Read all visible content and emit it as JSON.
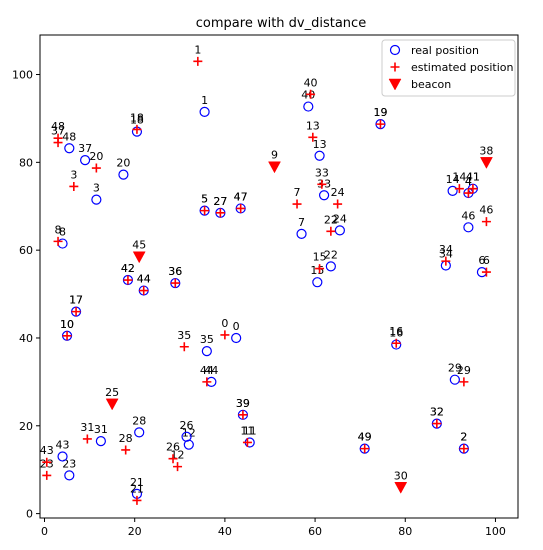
{
  "chart_data": {
    "type": "scatter",
    "title": "compare with dv_distance",
    "xlabel": "",
    "ylabel": "",
    "xlim": [
      -1,
      105
    ],
    "ylim": [
      -1,
      109
    ],
    "xticks": [
      0,
      20,
      40,
      60,
      80,
      100
    ],
    "yticks": [
      0,
      20,
      40,
      60,
      80,
      100
    ],
    "grid": false,
    "legend_position": "top-right",
    "colors": {
      "real": "#0000ff",
      "estimated": "#ff0000",
      "beacon": "#ff0000"
    },
    "series": [
      {
        "name": "real position",
        "marker": "circle",
        "points": [
          {
            "label": "0",
            "x": 42.5,
            "y": 40.0
          },
          {
            "label": "1",
            "x": 35.5,
            "y": 91.5
          },
          {
            "label": "2",
            "x": 93.0,
            "y": 14.8
          },
          {
            "label": "3",
            "x": 11.5,
            "y": 71.5
          },
          {
            "label": "4",
            "x": 94.0,
            "y": 73.0
          },
          {
            "label": "5",
            "x": 35.5,
            "y": 69.0
          },
          {
            "label": "6",
            "x": 97.0,
            "y": 55.0
          },
          {
            "label": "7",
            "x": 57.0,
            "y": 63.7
          },
          {
            "label": "8",
            "x": 4.0,
            "y": 61.5
          },
          {
            "label": "10",
            "x": 5.0,
            "y": 40.5
          },
          {
            "label": "11",
            "x": 45.5,
            "y": 16.2
          },
          {
            "label": "12",
            "x": 32.0,
            "y": 15.7
          },
          {
            "label": "13",
            "x": 61.0,
            "y": 81.5
          },
          {
            "label": "14",
            "x": 90.5,
            "y": 73.5
          },
          {
            "label": "15",
            "x": 60.5,
            "y": 52.7
          },
          {
            "label": "16",
            "x": 78.0,
            "y": 38.5
          },
          {
            "label": "17",
            "x": 7.0,
            "y": 46.0
          },
          {
            "label": "18",
            "x": 20.5,
            "y": 87.0
          },
          {
            "label": "19",
            "x": 74.5,
            "y": 88.7
          },
          {
            "label": "20",
            "x": 17.5,
            "y": 77.2
          },
          {
            "label": "21",
            "x": 20.5,
            "y": 4.5
          },
          {
            "label": "22",
            "x": 63.5,
            "y": 56.3
          },
          {
            "label": "23",
            "x": 5.5,
            "y": 8.7
          },
          {
            "label": "24",
            "x": 65.5,
            "y": 64.5
          },
          {
            "label": "26",
            "x": 31.5,
            "y": 17.5
          },
          {
            "label": "27",
            "x": 39.0,
            "y": 68.5
          },
          {
            "label": "28",
            "x": 21.0,
            "y": 18.5
          },
          {
            "label": "29",
            "x": 91.0,
            "y": 30.5
          },
          {
            "label": "31",
            "x": 12.5,
            "y": 16.5
          },
          {
            "label": "32",
            "x": 87.0,
            "y": 20.5
          },
          {
            "label": "33",
            "x": 62.0,
            "y": 72.5
          },
          {
            "label": "34",
            "x": 89.0,
            "y": 56.5
          },
          {
            "label": "35",
            "x": 36.0,
            "y": 37.0
          },
          {
            "label": "36",
            "x": 29.0,
            "y": 52.5
          },
          {
            "label": "37",
            "x": 9.0,
            "y": 80.5
          },
          {
            "label": "39",
            "x": 44.0,
            "y": 22.5
          },
          {
            "label": "40",
            "x": 58.5,
            "y": 92.7
          },
          {
            "label": "41",
            "x": 95.0,
            "y": 74.0
          },
          {
            "label": "42",
            "x": 18.5,
            "y": 53.2
          },
          {
            "label": "43",
            "x": 4.0,
            "y": 13.0
          },
          {
            "label": "44",
            "x": 37.0,
            "y": 30.0
          },
          {
            "label": "44",
            "x": 22.0,
            "y": 50.8
          },
          {
            "label": "46",
            "x": 94.0,
            "y": 65.2
          },
          {
            "label": "47",
            "x": 43.5,
            "y": 69.5
          },
          {
            "label": "48",
            "x": 5.5,
            "y": 83.2
          },
          {
            "label": "49",
            "x": 71.0,
            "y": 14.8
          }
        ]
      },
      {
        "name": "estimated position",
        "marker": "plus",
        "points": [
          {
            "label": "0",
            "x": 40.0,
            "y": 40.7
          },
          {
            "label": "1",
            "x": 34.0,
            "y": 103.0
          },
          {
            "label": "2",
            "x": 93.0,
            "y": 14.8
          },
          {
            "label": "3",
            "x": 6.5,
            "y": 74.5
          },
          {
            "label": "4",
            "x": 94.0,
            "y": 73.0
          },
          {
            "label": "5",
            "x": 35.5,
            "y": 69.0
          },
          {
            "label": "6",
            "x": 98.0,
            "y": 55.0
          },
          {
            "label": "7",
            "x": 56.0,
            "y": 70.5
          },
          {
            "label": "8",
            "x": 3.0,
            "y": 62.0
          },
          {
            "label": "10",
            "x": 5.0,
            "y": 40.5
          },
          {
            "label": "11",
            "x": 45.0,
            "y": 16.2
          },
          {
            "label": "12",
            "x": 29.5,
            "y": 10.7
          },
          {
            "label": "13",
            "x": 59.5,
            "y": 85.7
          },
          {
            "label": "14",
            "x": 92.0,
            "y": 74.0
          },
          {
            "label": "15",
            "x": 61.0,
            "y": 55.8
          },
          {
            "label": "16",
            "x": 78.0,
            "y": 38.8
          },
          {
            "label": "17",
            "x": 7.0,
            "y": 46.0
          },
          {
            "label": "18",
            "x": 20.5,
            "y": 87.5
          },
          {
            "label": "19",
            "x": 74.5,
            "y": 88.7
          },
          {
            "label": "20",
            "x": 11.5,
            "y": 78.7
          },
          {
            "label": "21",
            "x": 20.5,
            "y": 3.0
          },
          {
            "label": "22",
            "x": 63.5,
            "y": 64.3
          },
          {
            "label": "23",
            "x": 0.5,
            "y": 8.7
          },
          {
            "label": "24",
            "x": 65.0,
            "y": 70.5
          },
          {
            "label": "26",
            "x": 28.5,
            "y": 12.5
          },
          {
            "label": "27",
            "x": 39.0,
            "y": 68.5
          },
          {
            "label": "28",
            "x": 18.0,
            "y": 14.5
          },
          {
            "label": "29",
            "x": 93.0,
            "y": 30.0
          },
          {
            "label": "31",
            "x": 9.5,
            "y": 17.0
          },
          {
            "label": "32",
            "x": 87.0,
            "y": 20.5
          },
          {
            "label": "33",
            "x": 61.5,
            "y": 75.0
          },
          {
            "label": "34",
            "x": 89.0,
            "y": 57.5
          },
          {
            "label": "35",
            "x": 31.0,
            "y": 38.0
          },
          {
            "label": "36",
            "x": 29.0,
            "y": 52.5
          },
          {
            "label": "37",
            "x": 3.0,
            "y": 84.5
          },
          {
            "label": "39",
            "x": 44.0,
            "y": 22.5
          },
          {
            "label": "40",
            "x": 59.0,
            "y": 95.5
          },
          {
            "label": "41",
            "x": 95.0,
            "y": 74.0
          },
          {
            "label": "42",
            "x": 18.5,
            "y": 53.2
          },
          {
            "label": "43",
            "x": 0.5,
            "y": 11.7
          },
          {
            "label": "44",
            "x": 36.0,
            "y": 30.0
          },
          {
            "label": "44",
            "x": 22.0,
            "y": 50.8
          },
          {
            "label": "46",
            "x": 98.0,
            "y": 66.5
          },
          {
            "label": "47",
            "x": 43.5,
            "y": 69.5
          },
          {
            "label": "48",
            "x": 3.0,
            "y": 85.5
          },
          {
            "label": "49",
            "x": 71.0,
            "y": 14.8
          }
        ]
      },
      {
        "name": "beacon",
        "marker": "triangle-down",
        "points": [
          {
            "label": "9",
            "x": 51.0,
            "y": 79.0
          },
          {
            "label": "25",
            "x": 15.0,
            "y": 25.0
          },
          {
            "label": "30",
            "x": 79.0,
            "y": 6.0
          },
          {
            "label": "38",
            "x": 98.0,
            "y": 80.0
          },
          {
            "label": "45",
            "x": 21.0,
            "y": 58.5
          }
        ]
      }
    ]
  }
}
